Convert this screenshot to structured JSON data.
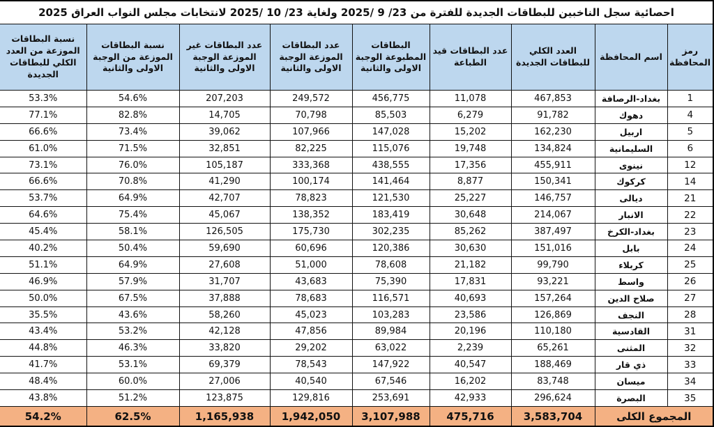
{
  "title": "احصائية سجل الناخبين للبطاقات الجديدة للفترة من  23/ 9 /2025 ولغاية  23/ 10 /2025 لانتخابات مجلس النواب العراق 2025",
  "colors": {
    "header_bg": "#BDD7EE",
    "footer_bg": "#F4B183",
    "border": "#111111",
    "text": "#111111"
  },
  "table": {
    "headers": [
      "رمز المحافظة",
      "اسم المحافظة",
      "العدد الكلي للبطاقات الجديدة",
      "عدد البطاقات قيد الطباعة",
      "البطاقات المطبوعة الوجبة الاولى والثانية",
      "عدد البطاقات الموزعة الوجبة الاولى والثانية",
      "عدد البطاقات غير الموزعة الوجبة الاولى والثانية",
      "نسبة البطاقات الموزعة من الوجبة الاولى والثانية",
      "نسبة البطاقات الموزعة من العدد الكلي للبطاقات الجديدة"
    ],
    "rows": [
      [
        "1",
        "بغداد-الرصافة",
        "467,853",
        "11,078",
        "456,775",
        "249,572",
        "207,203",
        "54.6%",
        "53.3%"
      ],
      [
        "4",
        "دهوك",
        "91,782",
        "6,279",
        "85,503",
        "70,798",
        "14,705",
        "82.8%",
        "77.1%"
      ],
      [
        "5",
        "اربيل",
        "162,230",
        "15,202",
        "147,028",
        "107,966",
        "39,062",
        "73.4%",
        "66.6%"
      ],
      [
        "6",
        "السليمانية",
        "134,824",
        "19,748",
        "115,076",
        "82,225",
        "32,851",
        "71.5%",
        "61.0%"
      ],
      [
        "12",
        "نينوى",
        "455,911",
        "17,356",
        "438,555",
        "333,368",
        "105,187",
        "76.0%",
        "73.1%"
      ],
      [
        "14",
        "كركوك",
        "150,341",
        "8,877",
        "141,464",
        "100,174",
        "41,290",
        "70.8%",
        "66.6%"
      ],
      [
        "21",
        "ديالى",
        "146,757",
        "25,227",
        "121,530",
        "78,823",
        "42,707",
        "64.9%",
        "53.7%"
      ],
      [
        "22",
        "الانبار",
        "214,067",
        "30,648",
        "183,419",
        "138,352",
        "45,067",
        "75.4%",
        "64.6%"
      ],
      [
        "23",
        "بغداد-الكرخ",
        "387,497",
        "85,262",
        "302,235",
        "175,730",
        "126,505",
        "58.1%",
        "45.4%"
      ],
      [
        "24",
        "بابل",
        "151,016",
        "30,630",
        "120,386",
        "60,696",
        "59,690",
        "50.4%",
        "40.2%"
      ],
      [
        "25",
        "كربلاء",
        "99,790",
        "21,182",
        "78,608",
        "51,000",
        "27,608",
        "64.9%",
        "51.1%"
      ],
      [
        "26",
        "واسط",
        "93,221",
        "17,831",
        "75,390",
        "43,683",
        "31,707",
        "57.9%",
        "46.9%"
      ],
      [
        "27",
        "صلاح الدين",
        "157,264",
        "40,693",
        "116,571",
        "78,683",
        "37,888",
        "67.5%",
        "50.0%"
      ],
      [
        "28",
        "النجف",
        "126,869",
        "23,586",
        "103,283",
        "45,023",
        "58,260",
        "43.6%",
        "35.5%"
      ],
      [
        "31",
        "القادسية",
        "110,180",
        "20,196",
        "89,984",
        "47,856",
        "42,128",
        "53.2%",
        "43.4%"
      ],
      [
        "32",
        "المثنى",
        "65,261",
        "2,239",
        "63,022",
        "29,202",
        "33,820",
        "46.3%",
        "44.8%"
      ],
      [
        "33",
        "ذي قار",
        "188,469",
        "40,547",
        "147,922",
        "78,543",
        "69,379",
        "53.1%",
        "41.7%"
      ],
      [
        "34",
        "ميسان",
        "83,748",
        "16,202",
        "67,546",
        "40,540",
        "27,006",
        "60.0%",
        "48.4%"
      ],
      [
        "35",
        "البصرة",
        "296,624",
        "42,933",
        "253,691",
        "129,816",
        "123,875",
        "51.2%",
        "43.8%"
      ]
    ],
    "footer": {
      "label": "المجموع الكلى",
      "values": [
        "3,583,704",
        "475,716",
        "3,107,988",
        "1,942,050",
        "1,165,938",
        "62.5%",
        "54.2%"
      ]
    }
  }
}
